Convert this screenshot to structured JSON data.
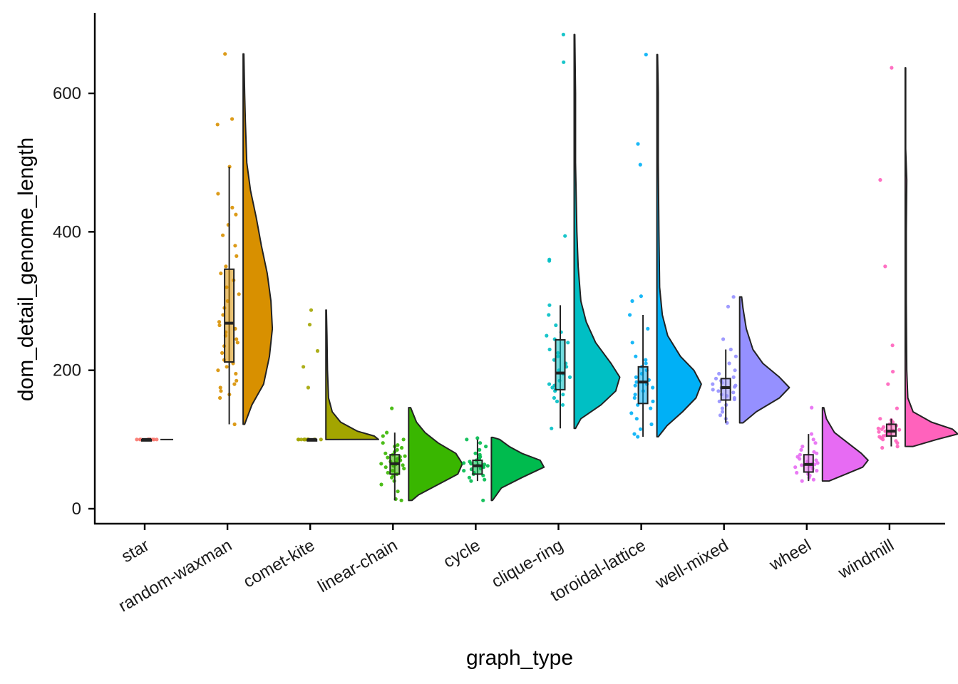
{
  "chart_data": {
    "type": "raincloud",
    "xlabel": "graph_type",
    "ylabel": "dom_detail_genome_length",
    "ylim": [
      -22,
      715
    ],
    "y_ticks": [
      0,
      200,
      400,
      600
    ],
    "y_tick_labels": [
      "0",
      "200",
      "400",
      "600"
    ],
    "grid": false,
    "legend": "none",
    "categories": [
      "star",
      "random-waxman",
      "comet-kite",
      "linear-chain",
      "cycle",
      "clique-ring",
      "toroidal-lattice",
      "well-mixed",
      "wheel",
      "windmill"
    ],
    "series": [
      {
        "category": "star",
        "color": "#F8766D",
        "box": {
          "whisker_low": 100,
          "q1": 100,
          "median": 100,
          "q3": 100,
          "whisker_high": 100
        },
        "density": [
          [
            100,
            0.3
          ]
        ],
        "points": [
          100,
          100,
          100,
          100,
          100,
          100,
          100,
          100,
          100,
          100,
          100,
          100
        ]
      },
      {
        "category": "random-waxman",
        "color": "#D89000",
        "box": {
          "whisker_low": 122,
          "q1": 212,
          "median": 268,
          "q3": 346,
          "whisker_high": 494
        },
        "density": [
          [
            122,
            0.02
          ],
          [
            150,
            0.12
          ],
          [
            180,
            0.28
          ],
          [
            220,
            0.36
          ],
          [
            260,
            0.4
          ],
          [
            300,
            0.38
          ],
          [
            340,
            0.33
          ],
          [
            380,
            0.25
          ],
          [
            420,
            0.18
          ],
          [
            460,
            0.1
          ],
          [
            500,
            0.05
          ],
          [
            560,
            0.03
          ],
          [
            600,
            0.02
          ],
          [
            657,
            0.01
          ]
        ],
        "points": [
          122,
          160,
          165,
          170,
          175,
          180,
          185,
          195,
          200,
          205,
          210,
          215,
          225,
          235,
          240,
          245,
          250,
          255,
          260,
          265,
          270,
          280,
          290,
          300,
          310,
          320,
          330,
          340,
          350,
          365,
          380,
          395,
          410,
          425,
          435,
          455,
          494,
          555,
          563,
          657
        ]
      },
      {
        "category": "comet-kite",
        "color": "#A3A500",
        "box": {
          "whisker_low": 100,
          "q1": 100,
          "median": 100,
          "q3": 100,
          "whisker_high": 100
        },
        "density": [
          [
            100,
            1.0
          ],
          [
            105,
            0.92
          ],
          [
            112,
            0.6
          ],
          [
            125,
            0.28
          ],
          [
            140,
            0.12
          ],
          [
            160,
            0.05
          ],
          [
            200,
            0.03
          ],
          [
            250,
            0.02
          ],
          [
            287,
            0.01
          ]
        ],
        "points": [
          100,
          100,
          100,
          100,
          100,
          100,
          100,
          100,
          100,
          100,
          100,
          100,
          100,
          100,
          175,
          205,
          228,
          266,
          287
        ]
      },
      {
        "category": "linear-chain",
        "color": "#39B600",
        "box": {
          "whisker_low": 12,
          "q1": 50,
          "median": 65,
          "q3": 78,
          "whisker_high": 110
        },
        "density": [
          [
            12,
            0.05
          ],
          [
            20,
            0.15
          ],
          [
            35,
            0.45
          ],
          [
            50,
            0.75
          ],
          [
            65,
            0.82
          ],
          [
            80,
            0.72
          ],
          [
            95,
            0.45
          ],
          [
            110,
            0.25
          ],
          [
            125,
            0.12
          ],
          [
            146,
            0.03
          ]
        ],
        "points": [
          12,
          14,
          25,
          35,
          40,
          45,
          48,
          50,
          52,
          55,
          58,
          60,
          62,
          63,
          64,
          65,
          66,
          67,
          68,
          70,
          72,
          74,
          75,
          76,
          78,
          80,
          82,
          85,
          88,
          90,
          92,
          95,
          100,
          105,
          110,
          145
        ]
      },
      {
        "category": "cycle",
        "color": "#00BB4E",
        "box": {
          "whisker_low": 40,
          "q1": 50,
          "median": 62,
          "q3": 70,
          "whisker_high": 100
        },
        "density": [
          [
            12,
            0.02
          ],
          [
            30,
            0.18
          ],
          [
            45,
            0.55
          ],
          [
            60,
            0.95
          ],
          [
            70,
            0.88
          ],
          [
            80,
            0.55
          ],
          [
            90,
            0.32
          ],
          [
            100,
            0.15
          ],
          [
            103,
            0.03
          ]
        ],
        "points": [
          12,
          40,
          42,
          45,
          48,
          50,
          52,
          55,
          57,
          58,
          60,
          61,
          62,
          63,
          64,
          65,
          66,
          68,
          70,
          72,
          75,
          78,
          80,
          85,
          90,
          95,
          100,
          102
        ]
      },
      {
        "category": "clique-ring",
        "color": "#00BFC4",
        "box": {
          "whisker_low": 116,
          "q1": 172,
          "median": 196,
          "q3": 244,
          "whisker_high": 294
        },
        "density": [
          [
            116,
            0.02
          ],
          [
            130,
            0.1
          ],
          [
            150,
            0.4
          ],
          [
            170,
            0.62
          ],
          [
            190,
            0.68
          ],
          [
            210,
            0.55
          ],
          [
            240,
            0.32
          ],
          [
            270,
            0.18
          ],
          [
            300,
            0.1
          ],
          [
            350,
            0.06
          ],
          [
            400,
            0.04
          ],
          [
            500,
            0.02
          ],
          [
            600,
            0.02
          ],
          [
            685,
            0.01
          ]
        ],
        "points": [
          116,
          150,
          155,
          160,
          165,
          170,
          172,
          175,
          178,
          180,
          185,
          190,
          195,
          200,
          205,
          210,
          215,
          220,
          225,
          230,
          240,
          245,
          250,
          255,
          265,
          280,
          294,
          358,
          360,
          394,
          645,
          685
        ]
      },
      {
        "category": "toroidal-lattice",
        "color": "#00B0F6",
        "box": {
          "whisker_low": 104,
          "q1": 152,
          "median": 183,
          "q3": 205,
          "whisker_high": 280
        },
        "density": [
          [
            104,
            0.02
          ],
          [
            120,
            0.15
          ],
          [
            140,
            0.38
          ],
          [
            160,
            0.58
          ],
          [
            180,
            0.66
          ],
          [
            200,
            0.55
          ],
          [
            220,
            0.35
          ],
          [
            250,
            0.16
          ],
          [
            280,
            0.08
          ],
          [
            320,
            0.04
          ],
          [
            400,
            0.03
          ],
          [
            500,
            0.02
          ],
          [
            600,
            0.02
          ],
          [
            656,
            0.01
          ]
        ],
        "points": [
          104,
          108,
          115,
          122,
          130,
          138,
          145,
          150,
          155,
          160,
          165,
          170,
          175,
          178,
          180,
          183,
          186,
          190,
          195,
          200,
          205,
          210,
          215,
          220,
          240,
          260,
          280,
          300,
          307,
          497,
          527,
          656
        ]
      },
      {
        "category": "well-mixed",
        "color": "#9590FF",
        "box": {
          "whisker_low": 124,
          "q1": 157,
          "median": 175,
          "q3": 188,
          "whisker_high": 230
        },
        "density": [
          [
            124,
            0.05
          ],
          [
            140,
            0.25
          ],
          [
            160,
            0.6
          ],
          [
            175,
            0.75
          ],
          [
            190,
            0.6
          ],
          [
            210,
            0.35
          ],
          [
            230,
            0.2
          ],
          [
            260,
            0.1
          ],
          [
            290,
            0.05
          ],
          [
            306,
            0.03
          ]
        ],
        "points": [
          124,
          130,
          135,
          140,
          145,
          150,
          155,
          158,
          160,
          163,
          165,
          168,
          170,
          172,
          174,
          175,
          176,
          178,
          180,
          182,
          185,
          188,
          190,
          195,
          200,
          210,
          220,
          230,
          245,
          292,
          306
        ]
      },
      {
        "category": "wheel",
        "color": "#E76BF3",
        "box": {
          "whisker_low": 40,
          "q1": 53,
          "median": 64,
          "q3": 78,
          "whisker_high": 108
        },
        "density": [
          [
            40,
            0.1
          ],
          [
            50,
            0.35
          ],
          [
            60,
            0.6
          ],
          [
            70,
            0.68
          ],
          [
            80,
            0.58
          ],
          [
            95,
            0.38
          ],
          [
            110,
            0.18
          ],
          [
            130,
            0.06
          ],
          [
            146,
            0.02
          ]
        ],
        "points": [
          40,
          42,
          45,
          48,
          50,
          52,
          55,
          58,
          60,
          62,
          63,
          64,
          65,
          66,
          68,
          70,
          72,
          75,
          78,
          80,
          82,
          85,
          90,
          95,
          100,
          108,
          146
        ]
      },
      {
        "category": "windmill",
        "color": "#FF62BC",
        "box": {
          "whisker_low": 90,
          "q1": 105,
          "median": 112,
          "q3": 122,
          "whisker_high": 130
        },
        "density": [
          [
            90,
            0.15
          ],
          [
            100,
            0.6
          ],
          [
            108,
            1.0
          ],
          [
            115,
            0.9
          ],
          [
            125,
            0.5
          ],
          [
            140,
            0.15
          ],
          [
            160,
            0.05
          ],
          [
            200,
            0.03
          ],
          [
            300,
            0.02
          ],
          [
            400,
            0.02
          ],
          [
            475,
            0.03
          ],
          [
            520,
            0.01
          ],
          [
            637,
            0.01
          ]
        ],
        "points": [
          88,
          90,
          95,
          98,
          100,
          102,
          104,
          105,
          106,
          108,
          110,
          111,
          112,
          113,
          114,
          115,
          116,
          118,
          120,
          122,
          125,
          128,
          130,
          145,
          180,
          198,
          236,
          350,
          475,
          637
        ]
      }
    ]
  }
}
